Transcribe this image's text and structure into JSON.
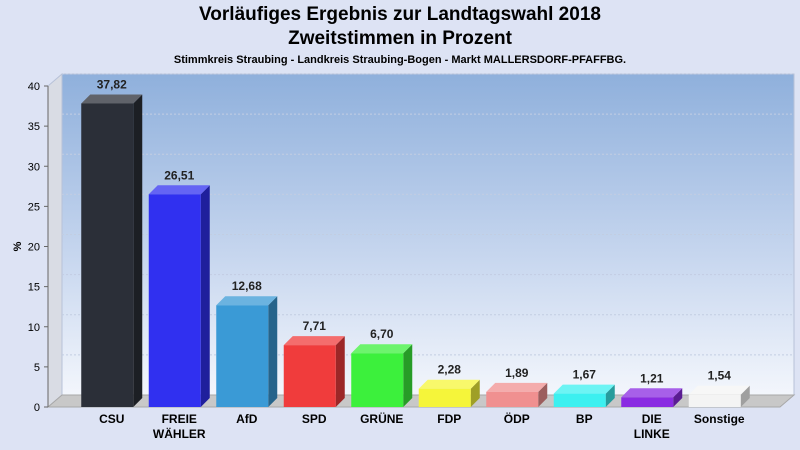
{
  "chart_data": {
    "type": "bar",
    "title": "Vorläufiges Ergebnis zur Landtagswahl 2018",
    "subtitle": "Zweitstimmen in Prozent",
    "subsubtitle": "Stimmkreis Straubing - Landkreis Straubing-Bogen - Markt MALLERSDORF-PFAFFBG.",
    "ylabel": "%",
    "xlabel": "",
    "ylim": [
      0,
      40
    ],
    "yticks": [
      0,
      5,
      10,
      15,
      20,
      25,
      30,
      35,
      40
    ],
    "grid": true,
    "categories": [
      [
        "CSU"
      ],
      [
        "FREIE",
        "WÄHLER"
      ],
      [
        "AfD"
      ],
      [
        "SPD"
      ],
      [
        "GRÜNE"
      ],
      [
        "FDP"
      ],
      [
        "ÖDP"
      ],
      [
        "BP"
      ],
      [
        "DIE",
        "LINKE"
      ],
      [
        "Sonstige"
      ]
    ],
    "values": [
      37.82,
      26.51,
      12.68,
      7.71,
      6.7,
      2.28,
      1.89,
      1.67,
      1.21,
      1.54
    ],
    "value_labels": [
      "37,82",
      "26,51",
      "12,68",
      "7,71",
      "6,70",
      "2,28",
      "1,89",
      "1,67",
      "1,21",
      "1,54"
    ],
    "colors": [
      "#2b2f38",
      "#3030f0",
      "#3a9ad6",
      "#f03c3c",
      "#3cf03c",
      "#f5f53a",
      "#f09090",
      "#3cf0f0",
      "#8a2be2",
      "#f4f4f4"
    ]
  }
}
